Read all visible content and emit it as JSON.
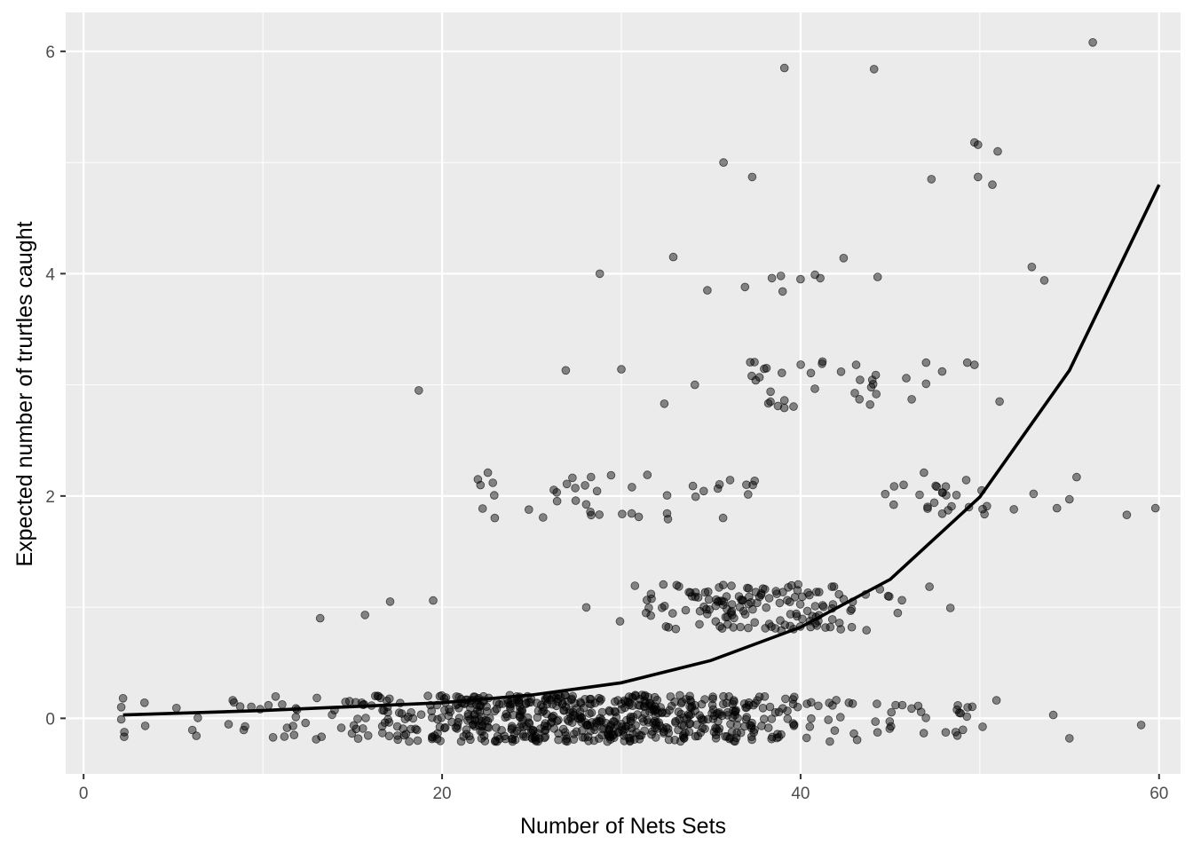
{
  "chart_data": {
    "type": "scatter",
    "title": "",
    "xlabel": "Number of Nets Sets",
    "ylabel": "Expected number of trurtles caught",
    "xlim": [
      -1,
      61.2
    ],
    "ylim": [
      -0.5,
      6.35
    ],
    "x_ticks": [
      0,
      20,
      40,
      60
    ],
    "y_ticks": [
      0,
      2,
      4,
      6
    ],
    "grid": true,
    "panel_background": "#ebebeb",
    "grid_color": "#ffffff",
    "point_color": "#000000",
    "point_opacity": 0.45,
    "curve_color": "#000000",
    "notable_points": [
      {
        "x": 18.7,
        "y": 2.95
      },
      {
        "x": 28.8,
        "y": 4.0
      },
      {
        "x": 32.9,
        "y": 4.15
      },
      {
        "x": 35.7,
        "y": 5.0
      },
      {
        "x": 37.3,
        "y": 4.87
      },
      {
        "x": 39.1,
        "y": 5.85
      },
      {
        "x": 44.1,
        "y": 5.84
      },
      {
        "x": 47.3,
        "y": 4.85
      },
      {
        "x": 49.7,
        "y": 5.18
      },
      {
        "x": 49.9,
        "y": 5.16
      },
      {
        "x": 51.0,
        "y": 5.1
      },
      {
        "x": 49.9,
        "y": 4.87
      },
      {
        "x": 50.7,
        "y": 4.8
      },
      {
        "x": 56.3,
        "y": 6.08
      },
      {
        "x": 52.9,
        "y": 4.06
      },
      {
        "x": 53.6,
        "y": 3.94
      },
      {
        "x": 34.8,
        "y": 3.85
      },
      {
        "x": 36.9,
        "y": 3.88
      },
      {
        "x": 38.4,
        "y": 3.96
      },
      {
        "x": 38.9,
        "y": 3.98
      },
      {
        "x": 39.0,
        "y": 3.84
      },
      {
        "x": 40.0,
        "y": 3.95
      },
      {
        "x": 40.8,
        "y": 3.99
      },
      {
        "x": 41.1,
        "y": 3.96
      },
      {
        "x": 42.4,
        "y": 4.14
      },
      {
        "x": 44.3,
        "y": 3.97
      },
      {
        "x": 58.2,
        "y": 1.83
      },
      {
        "x": 59.8,
        "y": 1.89
      },
      {
        "x": 55.4,
        "y": 2.17
      },
      {
        "x": 53.0,
        "y": 2.02
      },
      {
        "x": 51.9,
        "y": 1.88
      },
      {
        "x": 54.3,
        "y": 1.89
      },
      {
        "x": 55.0,
        "y": 1.97
      },
      {
        "x": 51.1,
        "y": 2.85
      },
      {
        "x": 50.1,
        "y": 2.05
      },
      {
        "x": 54.1,
        "y": 0.03
      },
      {
        "x": 55.0,
        "y": -0.18
      },
      {
        "x": 59.0,
        "y": -0.06
      },
      {
        "x": 2.2,
        "y": 0.18
      },
      {
        "x": 2.1,
        "y": 0.1
      },
      {
        "x": 3.4,
        "y": 0.14
      },
      {
        "x": 13.2,
        "y": 0.9
      },
      {
        "x": 15.7,
        "y": 0.93
      },
      {
        "x": 17.1,
        "y": 1.05
      },
      {
        "x": 19.5,
        "y": 1.06
      },
      {
        "x": 22.0,
        "y": 2.15
      },
      {
        "x": 26.9,
        "y": 3.13
      },
      {
        "x": 30.0,
        "y": 3.14
      },
      {
        "x": 34.1,
        "y": 3.0
      },
      {
        "x": 32.4,
        "y": 2.83
      },
      {
        "x": 37.5,
        "y": 3.04
      },
      {
        "x": 38.1,
        "y": 3.15
      },
      {
        "x": 39.1,
        "y": 2.86
      },
      {
        "x": 41.2,
        "y": 3.19
      },
      {
        "x": 43.1,
        "y": 3.18
      },
      {
        "x": 45.9,
        "y": 3.06
      },
      {
        "x": 47.0,
        "y": 3.2
      },
      {
        "x": 47.9,
        "y": 3.12
      },
      {
        "x": 49.3,
        "y": 3.2
      },
      {
        "x": 49.7,
        "y": 3.18
      },
      {
        "x": 46.2,
        "y": 2.87
      },
      {
        "x": 47.0,
        "y": 3.01
      }
    ],
    "cluster_levels": [
      0,
      1,
      2,
      3
    ],
    "fitted_curve": {
      "x": [
        2.2,
        10,
        20,
        25,
        30,
        35,
        40,
        45,
        50,
        55,
        60
      ],
      "y": [
        0.03,
        0.07,
        0.14,
        0.21,
        0.32,
        0.52,
        0.82,
        1.25,
        1.99,
        3.13,
        4.8
      ]
    }
  }
}
